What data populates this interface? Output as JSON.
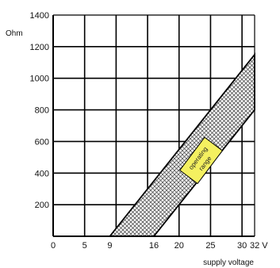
{
  "chart_data": {
    "type": "area",
    "title": "",
    "xlabel": "supply voltage",
    "ylabel": "Ohm",
    "x_unit": "V",
    "xlim": [
      0,
      32
    ],
    "ylim": [
      0,
      1400
    ],
    "x_ticks": [
      "0",
      "5",
      "9",
      "16",
      "20",
      "25",
      "30",
      "32 V"
    ],
    "x_tick_values": [
      0,
      5,
      9,
      16,
      20,
      25,
      30,
      32
    ],
    "y_ticks": [
      "200",
      "400",
      "600",
      "800",
      "1000",
      "1200",
      "1400"
    ],
    "y_tick_values": [
      200,
      400,
      600,
      800,
      1000,
      1200,
      1400
    ],
    "grid": true,
    "series": [
      {
        "points": [
          [
            9,
            0
          ],
          [
            32,
            1150
          ],
          [
            32,
            800
          ],
          [
            16,
            0
          ]
        ]
      }
    ],
    "annotations": [
      {
        "text": "operating range",
        "x": 23.5,
        "y": 480
      }
    ],
    "colors": {
      "band": "#d6d6d6",
      "label_box": "#f4f060",
      "grid": "#000000"
    }
  }
}
